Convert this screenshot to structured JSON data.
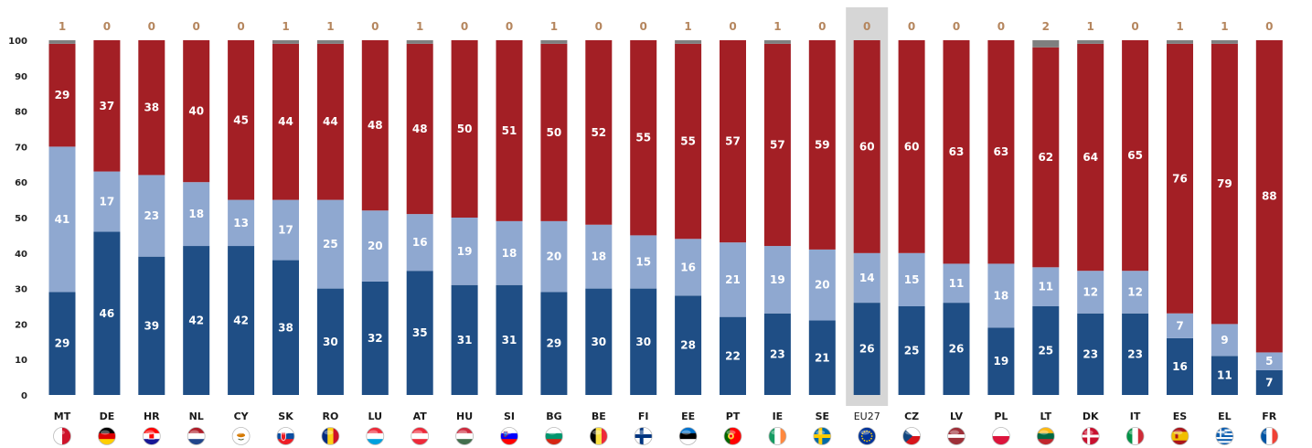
{
  "chart_data": {
    "type": "bar",
    "stacked": true,
    "ylim": [
      0,
      100
    ],
    "yticks": [
      "0",
      "10",
      "20",
      "30",
      "40",
      "50",
      "60",
      "70",
      "80",
      "90",
      "100"
    ],
    "highlight_category": "EU27",
    "categories": [
      "MT",
      "DE",
      "HR",
      "NL",
      "CY",
      "SK",
      "RO",
      "LU",
      "AT",
      "HU",
      "SI",
      "BG",
      "BE",
      "FI",
      "EE",
      "PT",
      "IE",
      "SE",
      "EU27",
      "CZ",
      "LV",
      "PL",
      "LT",
      "DK",
      "IT",
      "ES",
      "EL",
      "FR"
    ],
    "series": [
      {
        "values": [
          29,
          46,
          39,
          42,
          42,
          38,
          30,
          32,
          35,
          31,
          31,
          29,
          30,
          30,
          28,
          22,
          23,
          21,
          26,
          25,
          26,
          19,
          25,
          23,
          23,
          16,
          11,
          7
        ]
      },
      {
        "values": [
          41,
          17,
          23,
          18,
          13,
          17,
          25,
          20,
          16,
          19,
          18,
          20,
          18,
          15,
          16,
          21,
          19,
          20,
          14,
          15,
          11,
          18,
          11,
          12,
          12,
          7,
          9,
          5
        ]
      },
      {
        "values": [
          29,
          37,
          38,
          40,
          45,
          44,
          44,
          48,
          48,
          50,
          51,
          50,
          52,
          55,
          55,
          57,
          57,
          59,
          60,
          60,
          63,
          63,
          62,
          64,
          65,
          76,
          79,
          88
        ]
      },
      {
        "values": [
          1,
          0,
          0,
          0,
          0,
          1,
          1,
          0,
          1,
          0,
          0,
          1,
          0,
          0,
          1,
          0,
          1,
          0,
          0,
          0,
          0,
          0,
          2,
          1,
          0,
          1,
          1,
          0
        ]
      }
    ],
    "colors": {
      "series1": "#1f4e85",
      "series2": "#8fa8d0",
      "series3": "#a31f25",
      "series4": "#7f7f7f",
      "highlight_bg": "#d6d6d6",
      "top_label": "#b5865e"
    }
  },
  "flags": [
    "MT",
    "DE",
    "HR",
    "NL",
    "CY",
    "SK",
    "RO",
    "LU",
    "AT",
    "HU",
    "SI",
    "BG",
    "BE",
    "FI",
    "EE",
    "PT",
    "IE",
    "SE",
    "EU27",
    "CZ",
    "LV",
    "PL",
    "LT",
    "DK",
    "IT",
    "ES",
    "EL",
    "FR"
  ]
}
